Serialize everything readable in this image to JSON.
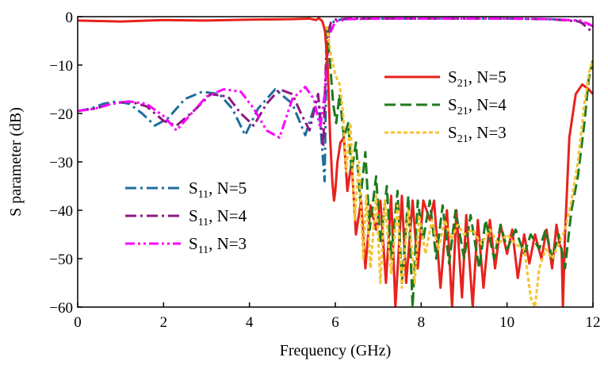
{
  "chart_data": {
    "type": "line",
    "title": "",
    "xlabel": "Frequency (GHz)",
    "ylabel": "S parameter (dB)",
    "xlim": [
      0,
      12
    ],
    "ylim": [
      -60,
      0
    ],
    "xticks": [
      0,
      2,
      4,
      6,
      8,
      10,
      12
    ],
    "yticks": [
      0,
      -10,
      -20,
      -30,
      -40,
      -50,
      -60
    ],
    "xtick_labels": [
      "0",
      "2",
      "4",
      "6",
      "8",
      "10",
      "12"
    ],
    "ytick_labels": [
      "0",
      "−10",
      "−20",
      "−30",
      "−40",
      "−50",
      "−60"
    ],
    "grid": false,
    "legends": [
      {
        "placement": "upper-right",
        "entries": [
          {
            "series": "S21_N5",
            "base": "S",
            "sub": "21",
            "rest": ", N=5"
          },
          {
            "series": "S21_N4",
            "base": "S",
            "sub": "21",
            "rest": ", N=4"
          },
          {
            "series": "S21_N3",
            "base": "S",
            "sub": "21",
            "rest": ", N=3"
          }
        ]
      },
      {
        "placement": "lower-left",
        "entries": [
          {
            "series": "S11_N5",
            "base": "S",
            "sub": "11",
            "rest": ", N=5"
          },
          {
            "series": "S11_N4",
            "base": "S",
            "sub": "11",
            "rest": ", N=4"
          },
          {
            "series": "S11_N3",
            "base": "S",
            "sub": "11",
            "rest": ", N=3"
          }
        ]
      }
    ],
    "series": [
      {
        "id": "S11_N5",
        "name": "S11, N=5",
        "color": "#1f6e9e",
        "dash": "dashdot",
        "x": [
          0,
          0.3,
          0.6,
          0.9,
          1.2,
          1.5,
          1.8,
          2.1,
          2.5,
          2.9,
          3.3,
          3.6,
          3.9,
          4.2,
          4.6,
          5.0,
          5.3,
          5.5,
          5.6,
          5.75,
          5.8,
          5.9,
          6.0,
          6.2,
          7.0,
          8.0,
          9.0,
          10.0,
          11.0,
          11.6,
          11.8,
          12.0
        ],
        "y": [
          -19.5,
          -19,
          -18,
          -17.5,
          -18,
          -20,
          -22.5,
          -21,
          -17,
          -15.5,
          -16,
          -19,
          -24.5,
          -19,
          -15,
          -18,
          -24.5,
          -19,
          -16,
          -34,
          -5,
          -1.5,
          -0.8,
          -0.5,
          -0.4,
          -0.4,
          -0.4,
          -0.4,
          -0.5,
          -0.8,
          -1.5,
          -1.8
        ]
      },
      {
        "id": "S11_N4",
        "name": "S11, N=4",
        "color": "#8b1a83",
        "dash": "dashdot",
        "x": [
          0,
          0.4,
          0.8,
          1.2,
          1.6,
          2.0,
          2.3,
          2.7,
          3.1,
          3.5,
          3.8,
          4.1,
          4.4,
          4.7,
          5.0,
          5.2,
          5.4,
          5.6,
          5.72,
          5.8,
          5.9,
          6.0,
          6.3,
          7.0,
          8.0,
          9.0,
          10.0,
          11.0,
          11.7,
          11.9,
          12.0
        ],
        "y": [
          -19.5,
          -19,
          -18,
          -17.5,
          -18.5,
          -21.5,
          -22.5,
          -19.5,
          -16,
          -16.5,
          -20,
          -22.5,
          -18,
          -15,
          -16,
          -20,
          -23.5,
          -16,
          -27,
          -4,
          -1.2,
          -0.6,
          -0.4,
          -0.4,
          -0.4,
          -0.4,
          -0.4,
          -0.5,
          -1,
          -2.5,
          -3.5
        ]
      },
      {
        "id": "S11_N3",
        "name": "S11, N=3",
        "color": "#ff00ff",
        "dash": "dashdotdot",
        "x": [
          0,
          0.4,
          0.8,
          1.2,
          1.6,
          2.0,
          2.3,
          2.6,
          3.0,
          3.4,
          3.8,
          4.1,
          4.4,
          4.7,
          5.0,
          5.3,
          5.5,
          5.65,
          5.75,
          5.85,
          6.0,
          6.3,
          7.0,
          8.0,
          9.0,
          10.0,
          11.0,
          11.7,
          11.9,
          12.0
        ],
        "y": [
          -19.5,
          -19,
          -18,
          -17.5,
          -18,
          -20.5,
          -23.5,
          -20.5,
          -16.5,
          -15,
          -15.5,
          -19,
          -23.5,
          -25,
          -17,
          -14.5,
          -17,
          -23,
          -16,
          -4,
          -1,
          -0.5,
          -0.4,
          -0.4,
          -0.4,
          -0.4,
          -0.5,
          -0.8,
          -1.5,
          -2
        ]
      },
      {
        "id": "S21_N5",
        "name": "S21, N=5",
        "color": "#e8221c",
        "dash": "solid",
        "x": [
          0,
          1,
          2,
          3,
          4,
          5,
          5.4,
          5.55,
          5.62,
          5.7,
          5.76,
          5.82,
          5.88,
          5.93,
          5.97,
          6.0,
          6.05,
          6.12,
          6.2,
          6.28,
          6.38,
          6.48,
          6.6,
          6.7,
          6.82,
          6.95,
          7.05,
          7.18,
          7.3,
          7.4,
          7.55,
          7.65,
          7.8,
          7.92,
          8.05,
          8.2,
          8.3,
          8.45,
          8.6,
          8.72,
          8.82,
          8.95,
          9.05,
          9.2,
          9.32,
          9.45,
          9.6,
          9.72,
          9.85,
          10.0,
          10.12,
          10.25,
          10.4,
          10.52,
          10.65,
          10.8,
          10.92,
          11.05,
          11.15,
          11.22,
          11.27,
          11.3,
          11.35,
          11.45,
          11.6,
          11.75,
          11.9,
          12.0
        ],
        "y": [
          -0.8,
          -1,
          -0.7,
          -0.8,
          -0.6,
          -0.5,
          -0.4,
          -0.7,
          -0.3,
          -1,
          -3,
          -10,
          -25,
          -34,
          -38,
          -36,
          -30,
          -26,
          -25,
          -36,
          -30,
          -45,
          -38,
          -52,
          -39,
          -44,
          -38,
          -55,
          -37,
          -60,
          -37,
          -55,
          -38,
          -52,
          -38,
          -42,
          -38,
          -56,
          -40,
          -60,
          -40,
          -58,
          -41,
          -60,
          -42,
          -56,
          -42,
          -52,
          -43,
          -49,
          -44,
          -54,
          -45,
          -51,
          -45,
          -50,
          -44,
          -52,
          -43,
          -47,
          -48,
          -60,
          -45,
          -25,
          -16,
          -14,
          -15,
          -16
        ]
      },
      {
        "id": "S21_N4",
        "name": "S21, N=4",
        "color": "#1e7a1e",
        "dash": "dashed",
        "x": [
          5.8,
          5.88,
          5.95,
          6.02,
          6.1,
          6.2,
          6.3,
          6.38,
          6.48,
          6.58,
          6.7,
          6.8,
          6.95,
          7.05,
          7.2,
          7.3,
          7.45,
          7.55,
          7.7,
          7.8,
          7.92,
          8.05,
          8.2,
          8.35,
          8.5,
          8.65,
          8.8,
          9.0,
          9.15,
          9.35,
          9.5,
          9.7,
          9.85,
          10.0,
          10.2,
          10.4,
          10.55,
          10.75,
          10.9,
          11.05,
          11.2,
          11.35,
          11.5,
          11.65,
          11.8,
          11.9,
          12.0
        ],
        "y": [
          -2,
          -10,
          -18,
          -22,
          -16,
          -25,
          -22,
          -32,
          -26,
          -38,
          -28,
          -44,
          -33,
          -47,
          -35,
          -50,
          -36,
          -55,
          -37,
          -60,
          -38,
          -46,
          -38,
          -50,
          -39,
          -51,
          -40,
          -50,
          -41,
          -52,
          -42,
          -50,
          -43,
          -48,
          -44,
          -49,
          -45,
          -48,
          -44,
          -50,
          -45,
          -52,
          -40,
          -33,
          -22,
          -13,
          -9
        ]
      },
      {
        "id": "S21_N3",
        "name": "S21, N=3",
        "color": "#f5c330",
        "dash": "dotted",
        "x": [
          5.8,
          5.9,
          6.0,
          6.1,
          6.18,
          6.25,
          6.35,
          6.45,
          6.55,
          6.65,
          6.72,
          6.82,
          6.95,
          7.05,
          7.15,
          7.3,
          7.45,
          7.55,
          7.7,
          7.85,
          7.95,
          8.1,
          8.25,
          8.4,
          8.55,
          8.7,
          8.85,
          9.0,
          9.2,
          9.4,
          9.6,
          9.8,
          10.0,
          10.2,
          10.4,
          10.55,
          10.65,
          10.75,
          10.9,
          11.05,
          11.2,
          11.35,
          11.5,
          11.65,
          11.8,
          11.92,
          12.0
        ],
        "y": [
          -2,
          -8,
          -12,
          -14,
          -20,
          -32,
          -22,
          -42,
          -30,
          -50,
          -37,
          -52,
          -37,
          -55,
          -38,
          -53,
          -39,
          -56,
          -40,
          -55,
          -41,
          -49,
          -42,
          -48,
          -42,
          -46,
          -43,
          -45,
          -44,
          -47,
          -44,
          -47,
          -45,
          -47,
          -48,
          -58,
          -60,
          -52,
          -48,
          -50,
          -47,
          -44,
          -38,
          -30,
          -18,
          -11,
          -9
        ]
      }
    ]
  }
}
